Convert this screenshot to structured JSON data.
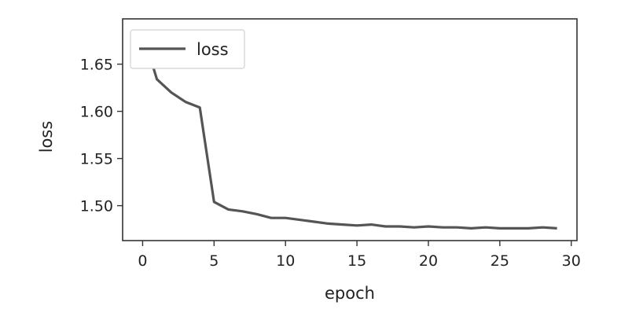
{
  "chart_data": {
    "type": "line",
    "title": "",
    "xlabel": "epoch",
    "ylabel": "loss",
    "xlim": [
      -1.4,
      30.4
    ],
    "ylim": [
      1.463,
      1.698
    ],
    "xticks": [
      0,
      5,
      10,
      15,
      20,
      25,
      30
    ],
    "xtick_labels": [
      "0",
      "5",
      "10",
      "15",
      "20",
      "25",
      "30"
    ],
    "yticks": [
      1.5,
      1.55,
      1.6,
      1.65
    ],
    "ytick_labels": [
      "1.50",
      "1.55",
      "1.60",
      "1.65"
    ],
    "grid": false,
    "legend_position": "top-left",
    "series": [
      {
        "name": "loss",
        "color": "#555555",
        "x": [
          0,
          1,
          2,
          3,
          4,
          5,
          6,
          7,
          8,
          9,
          10,
          11,
          12,
          13,
          14,
          15,
          16,
          17,
          18,
          19,
          20,
          21,
          22,
          23,
          24,
          25,
          26,
          27,
          28,
          29
        ],
        "y": [
          1.684,
          1.634,
          1.62,
          1.61,
          1.604,
          1.504,
          1.496,
          1.494,
          1.491,
          1.487,
          1.487,
          1.485,
          1.483,
          1.481,
          1.48,
          1.479,
          1.48,
          1.478,
          1.478,
          1.477,
          1.478,
          1.477,
          1.477,
          1.476,
          1.477,
          1.476,
          1.476,
          1.476,
          1.477,
          1.476
        ]
      }
    ]
  }
}
